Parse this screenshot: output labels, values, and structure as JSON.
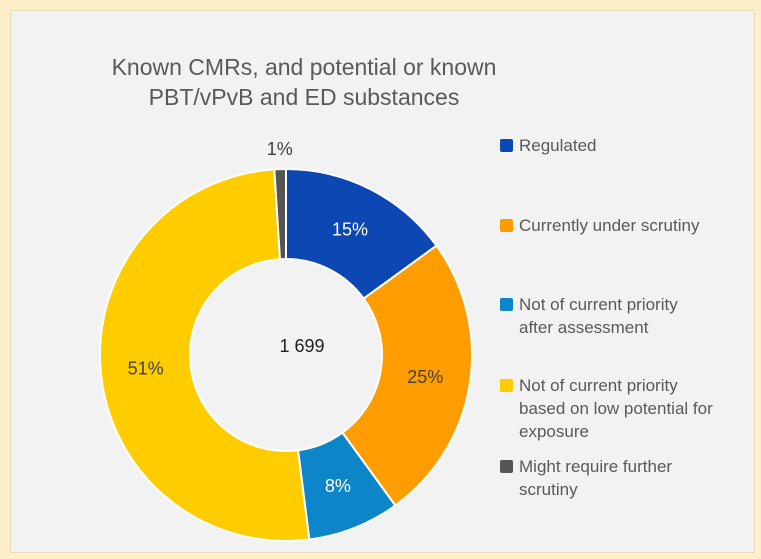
{
  "chart_data": {
    "type": "pie",
    "title": [
      "Known CMRs, and potential or known",
      "PBT/vPvB and ED substances"
    ],
    "center_label": "1 699",
    "slices": [
      {
        "name": "Regulated",
        "value": 15,
        "label": "15%",
        "color": "#0c47b3"
      },
      {
        "name": "Currently under scrutiny",
        "value": 25,
        "label": "25%",
        "color": "#ff9d00"
      },
      {
        "name": "Not of current priority after assessment",
        "value": 8,
        "label": "8%",
        "color": "#0d86c9"
      },
      {
        "name": "Not of current priority based on low potential for exposure",
        "value": 51,
        "label": "51%",
        "color": "#ffcc00"
      },
      {
        "name": "Might require further scrutiny",
        "value": 1,
        "label": "1%",
        "color": "#555555"
      }
    ],
    "legend": [
      {
        "lines": [
          "Regulated"
        ],
        "color": "#0c47b3"
      },
      {
        "lines": [
          "Currently under scrutiny"
        ],
        "color": "#ff9d00"
      },
      {
        "lines": [
          "Not of current priority",
          "after assessment"
        ],
        "color": "#0d86c9"
      },
      {
        "lines": [
          "Not of current priority",
          "based on low potential for",
          "exposure"
        ],
        "color": "#ffcc00"
      },
      {
        "lines": [
          "Might require further",
          "scrutiny"
        ],
        "color": "#555555"
      }
    ],
    "legend_position": "right",
    "donut": true
  }
}
